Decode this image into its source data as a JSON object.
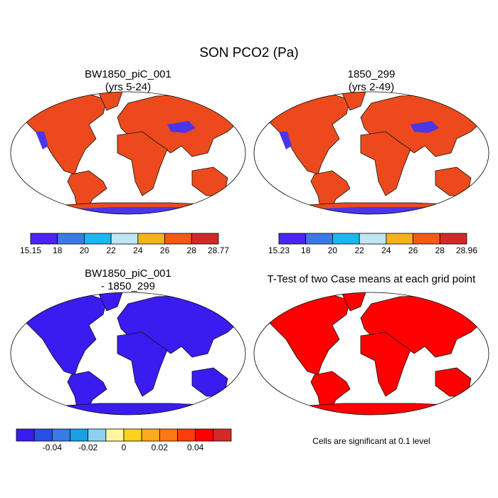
{
  "title": "SON PCO2 (Pa)",
  "panels": [
    {
      "title": [
        "BW1850_piC_001",
        "(yrs 5-24)"
      ],
      "land_color": "#ec4a1c",
      "accent_color": "#4b35e8",
      "colorbar": {
        "colors": [
          "#4b24f5",
          "#3c7ae6",
          "#19b8f0",
          "#bfe6f5",
          "#f5b21c",
          "#f55a14",
          "#d22a28"
        ],
        "labels": [
          "15.15",
          "18",
          "20",
          "22",
          "24",
          "26",
          "28",
          "28.77"
        ]
      }
    },
    {
      "title": [
        "1850_299",
        "(yrs 2-49)"
      ],
      "land_color": "#ec4a1c",
      "accent_color": "#4b35e8",
      "colorbar": {
        "colors": [
          "#4b24f5",
          "#3c7ae6",
          "#19b8f0",
          "#bfe6f5",
          "#f5b21c",
          "#f55a14",
          "#d22a28"
        ],
        "labels": [
          "15.23",
          "18",
          "20",
          "22",
          "24",
          "26",
          "28",
          "28.96"
        ]
      }
    },
    {
      "title": [
        "BW1850_piC_001",
        "- 1850_299"
      ],
      "land_color": "#3a1cf0",
      "colorbar": {
        "colors": [
          "#3a1cf0",
          "#2850e6",
          "#3a7ae6",
          "#1aa0e6",
          "#8cd2f0",
          "#fff5a0",
          "#ffd21e",
          "#ffaa1e",
          "#ff7814",
          "#ff3c0a",
          "#ff0000",
          "#d22a28"
        ],
        "labels": [
          null,
          null,
          "-0.04",
          null,
          "-0.02",
          null,
          "0",
          null,
          "0.02",
          null,
          "0.04",
          null,
          null
        ]
      }
    },
    {
      "title": [
        "T-Test of two Case means at each grid point"
      ],
      "land_color": "#ff0000",
      "note": "Cells are significant at 0.1 level"
    }
  ]
}
